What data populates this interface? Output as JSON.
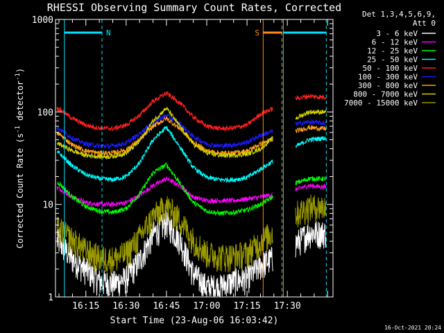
{
  "chart_data": {
    "type": "line",
    "title": "RHESSI Observing Summary Count Rates, Corrected",
    "xlabel": "Start Time (23-Aug-06 16:03:42)",
    "ylabel_main": "Corrected Count Rate (s",
    "ylabel_sup1": "-1",
    "ylabel_mid": " detector",
    "ylabel_sup2": "-1",
    "ylabel_end": ")",
    "yscale": "log",
    "ylim": [
      1,
      1000
    ],
    "y_ticks": [
      "1",
      "10",
      "100",
      "1000"
    ],
    "x_ticks": [
      "16:15",
      "16:30",
      "16:45",
      "17:00",
      "17:15",
      "17:30"
    ],
    "x_tick_minutes": [
      15,
      30,
      45,
      60,
      75,
      90
    ],
    "xlim_minutes": [
      3.7,
      107
    ],
    "legend_header": [
      "Det 1,3,4,5,6,9,",
      "Att 0"
    ],
    "footer_date": "16-Oct-2021 20:24",
    "annotations": [
      {
        "label": "N",
        "color": "#00e5ff",
        "x_minutes": 7.0,
        "x_end": 21.0
      },
      {
        "label": "S",
        "color": "#ff8c1a",
        "x_minutes": 81.0,
        "x_end": 88.0
      },
      {
        "label": "",
        "color": "#00e5ff",
        "x_minutes": 88.5,
        "x_end": 104.5
      }
    ],
    "gap_minutes": [
      85,
      92
    ],
    "series": [
      {
        "name": "3 - 6 keV",
        "color": "#ffffff",
        "x": [
          5,
          10,
          15,
          20,
          25,
          30,
          35,
          40,
          45,
          50,
          55,
          60,
          65,
          70,
          75,
          80,
          93,
          98,
          103
        ],
        "y": [
          4,
          2.6,
          2.0,
          1.5,
          1.4,
          1.6,
          2.5,
          4.8,
          6.5,
          4.2,
          1.8,
          1.3,
          1.3,
          1.5,
          1.6,
          2.2,
          3.8,
          5.0,
          5.0
        ]
      },
      {
        "name": "6 - 12 keV",
        "color": "#ff00ff",
        "x": [
          5,
          10,
          15,
          20,
          25,
          30,
          35,
          40,
          45,
          50,
          55,
          60,
          65,
          70,
          75,
          80,
          93,
          98,
          103
        ],
        "y": [
          15,
          12,
          10.5,
          10,
          10,
          10.5,
          12.5,
          16,
          19,
          16,
          12,
          11,
          11,
          11,
          11.5,
          12,
          14.5,
          16,
          15.5
        ]
      },
      {
        "name": "12 - 25 keV",
        "color": "#00ff00",
        "x": [
          5,
          10,
          15,
          20,
          25,
          30,
          35,
          40,
          45,
          50,
          55,
          60,
          65,
          70,
          75,
          80,
          93,
          98,
          103
        ],
        "y": [
          17,
          12,
          9.5,
          8.5,
          8.2,
          9,
          13,
          22,
          27,
          17,
          10.5,
          8.5,
          8,
          8.2,
          8.7,
          10,
          17,
          19,
          19
        ]
      },
      {
        "name": "25 - 50 keV",
        "color": "#00ffff",
        "x": [
          5,
          10,
          15,
          20,
          25,
          30,
          35,
          40,
          45,
          50,
          55,
          60,
          65,
          70,
          75,
          80,
          93,
          98,
          103
        ],
        "y": [
          36,
          26,
          21,
          19,
          18.5,
          20,
          28,
          50,
          68,
          42,
          25,
          19.5,
          18.5,
          18.5,
          19.5,
          24,
          42,
          50,
          52
        ]
      },
      {
        "name": "50 - 100 keV",
        "color": "#ff2020",
        "x": [
          5,
          10,
          15,
          20,
          25,
          30,
          35,
          40,
          45,
          50,
          55,
          60,
          65,
          70,
          75,
          80,
          93,
          98,
          103
        ],
        "y": [
          108,
          85,
          72,
          67,
          66,
          72,
          92,
          130,
          160,
          125,
          88,
          70,
          66,
          67,
          72,
          95,
          140,
          148,
          145
        ]
      },
      {
        "name": "100 - 300 keV",
        "color": "#1a1aff",
        "x": [
          5,
          10,
          15,
          20,
          25,
          30,
          35,
          40,
          45,
          50,
          55,
          60,
          65,
          70,
          75,
          80,
          93,
          98,
          103
        ],
        "y": [
          66,
          52,
          45,
          43,
          43,
          46,
          58,
          78,
          92,
          74,
          54,
          45,
          43,
          44,
          47,
          56,
          74,
          78,
          76
        ]
      },
      {
        "name": "300 - 800 keV",
        "color": "#ff9f1a",
        "x": [
          5,
          10,
          15,
          20,
          25,
          30,
          35,
          40,
          45,
          50,
          55,
          60,
          65,
          70,
          75,
          80,
          93,
          98,
          103
        ],
        "y": [
          58,
          44,
          38,
          36,
          36,
          39,
          50,
          70,
          85,
          66,
          47,
          38,
          36,
          36,
          38,
          45,
          62,
          68,
          66
        ]
      },
      {
        "name": "800 - 7000 keV",
        "color": "#d4d400",
        "x": [
          5,
          10,
          15,
          20,
          25,
          30,
          35,
          40,
          45,
          50,
          55,
          60,
          65,
          70,
          75,
          80,
          93,
          98,
          103
        ],
        "y": [
          45,
          38,
          34,
          33,
          33,
          36,
          48,
          80,
          110,
          70,
          45,
          36,
          34,
          34,
          35,
          40,
          85,
          100,
          100
        ]
      },
      {
        "name": "7000 - 15000 keV",
        "color": "#999900",
        "x": [
          5,
          10,
          15,
          20,
          25,
          30,
          35,
          40,
          45,
          50,
          55,
          60,
          65,
          70,
          75,
          80,
          93,
          98,
          103
        ],
        "y": [
          5.5,
          4.2,
          3.2,
          2.7,
          2.6,
          3.0,
          4.5,
          7.5,
          9.8,
          7.0,
          4.2,
          3.0,
          2.8,
          2.8,
          3.0,
          4.0,
          8.0,
          9.5,
          9.5
        ]
      }
    ]
  }
}
